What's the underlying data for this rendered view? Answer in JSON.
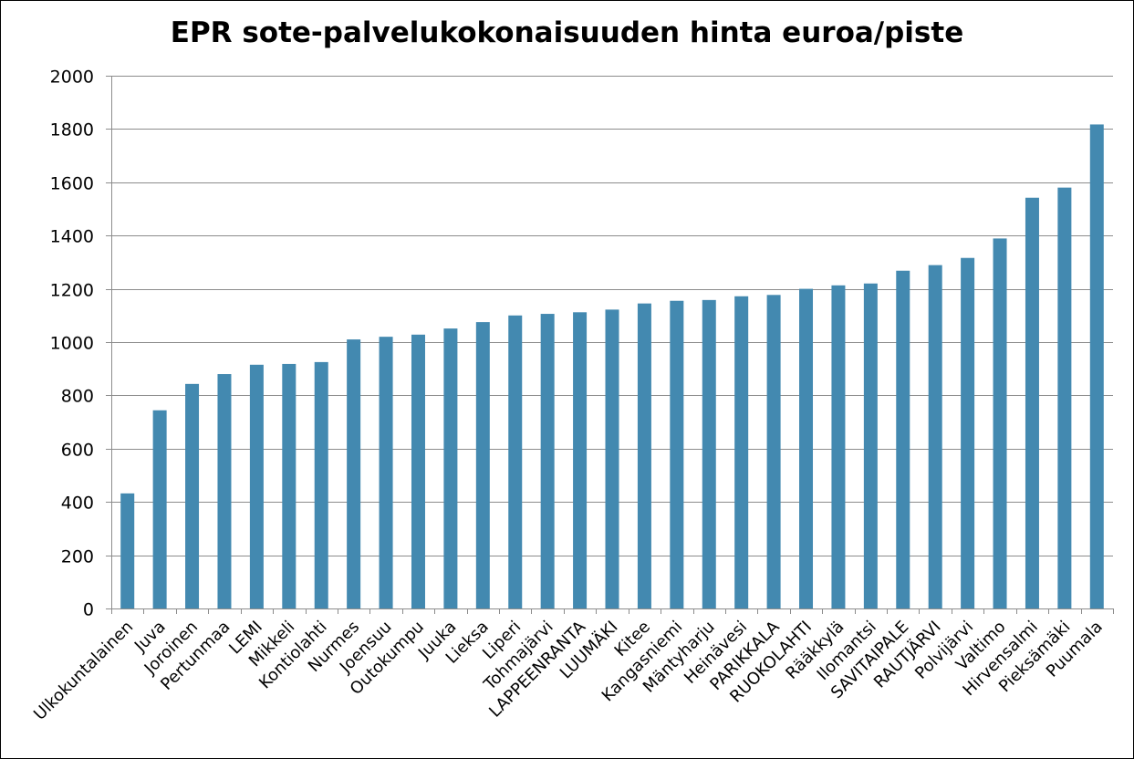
{
  "chart_data": {
    "type": "bar",
    "title": "EPR sote-palvelukokonaisuuden hinta euroa/piste",
    "xlabel": "",
    "ylabel": "",
    "ylim": [
      0,
      2000
    ],
    "yticks": [
      0,
      200,
      400,
      600,
      800,
      1000,
      1200,
      1400,
      1600,
      1800,
      2000
    ],
    "grid": true,
    "legend": "none",
    "bar_color": "#4389b0",
    "categories": [
      "Ulkokuntalainen",
      "Juva",
      "Joroinen",
      "Pertunmaa",
      "LEMI",
      "Mikkeli",
      "Kontiolahti",
      "Nurmes",
      "Joensuu",
      "Outokumpu",
      "Juuka",
      "Lieksa",
      "Liperi",
      "Tohmajärvi",
      "LAPPEENRANTA",
      "LUUMÄKI",
      "Kitee",
      "Kangasniemi",
      "Mäntyharju",
      "Heinävesi",
      "PARIKKALA",
      "RUOKOLAHTI",
      "Rääkkylä",
      "Ilomantsi",
      "SAVITAIPALE",
      "RAUTJÄRVI",
      "Polvijärvi",
      "Valtimo",
      "Hirvensalmi",
      "Pieksämäki",
      "Puumala"
    ],
    "values": [
      432,
      744,
      843,
      880,
      915,
      918,
      925,
      1010,
      1020,
      1028,
      1051,
      1075,
      1100,
      1106,
      1112,
      1122,
      1145,
      1155,
      1158,
      1172,
      1177,
      1200,
      1213,
      1220,
      1268,
      1289,
      1316,
      1389,
      1542,
      1580,
      1817
    ]
  }
}
